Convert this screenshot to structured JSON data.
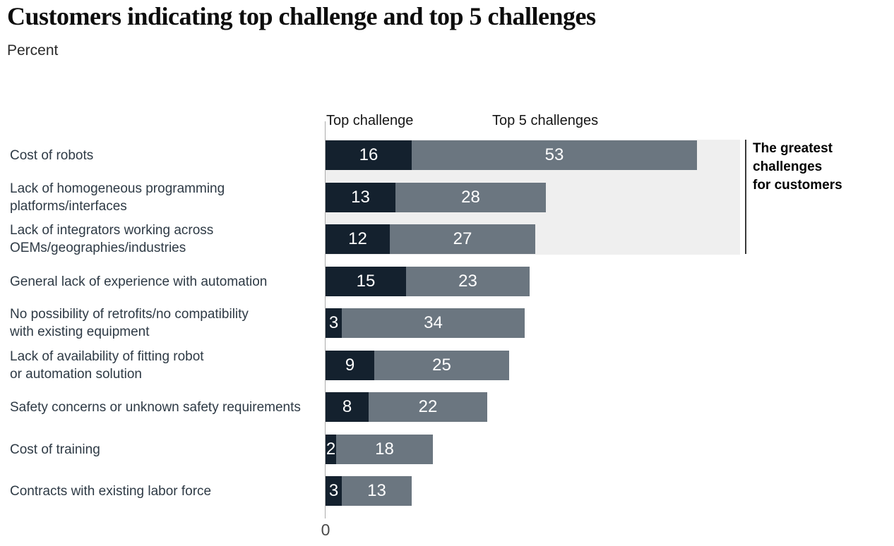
{
  "chart_data": {
    "type": "bar",
    "orientation": "horizontal",
    "stacked": true,
    "title": "Customers indicating top challenge and top 5 challenges",
    "units_label": "Percent",
    "categories": [
      "Cost of robots",
      "Lack of homogeneous programming\nplatforms/interfaces",
      "Lack of integrators working across\nOEMs/geographies/industries",
      "General lack of experience with automation",
      "No possibility of retrofits/no compatibility\nwith existing equipment",
      "Lack of availability of fitting robot\nor automation solution",
      "Safety concerns or unknown safety requirements",
      "Cost of training",
      "Contracts with existing labor force"
    ],
    "series": [
      {
        "name": "Top challenge",
        "color": "#14212e",
        "values": [
          16,
          13,
          12,
          15,
          3,
          9,
          8,
          2,
          3
        ]
      },
      {
        "name": "Top 5 challenges",
        "color": "#6b7680",
        "values": [
          53,
          28,
          27,
          23,
          34,
          25,
          22,
          18,
          13
        ]
      }
    ],
    "value_labels": "inside, white",
    "legend_position": "top, as column headers",
    "x_axis": {
      "min": 0,
      "tick_labels": [
        "0"
      ],
      "gridlines": false
    },
    "annotation": {
      "text": "The greatest\nchallenges\nfor customers"
    },
    "highlight": {
      "category_indexes": [
        0,
        1,
        2
      ],
      "background": "#efefef",
      "meaning": "The greatest challenges for customers"
    }
  },
  "colors": {
    "series_top_challenge": "#14212e",
    "series_top5_challenges": "#6b7680",
    "highlight_background": "#efefef",
    "axis_line": "#ababab",
    "annotation_rule": "#3a3a3a",
    "category_label_text": "#2e3a45",
    "title_text": "#0d0d0d"
  }
}
